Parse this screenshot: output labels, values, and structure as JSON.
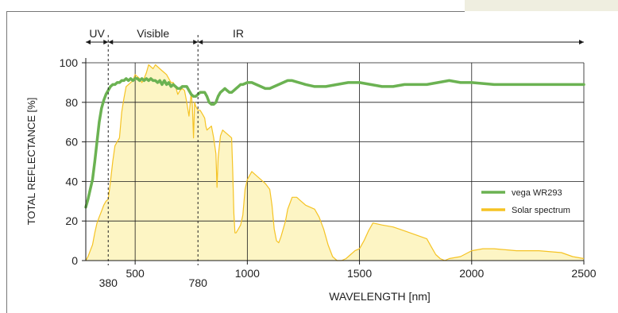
{
  "chart_data": {
    "type": "line",
    "title": "",
    "xlabel": "WAVELENGTH [nm]",
    "ylabel": "TOTAL REFLECTANCE [%]",
    "xlim": [
      280,
      2500
    ],
    "ylim": [
      0,
      100
    ],
    "x_ticks": [
      500,
      1000,
      1500,
      2000,
      2500
    ],
    "x_ticks_low": [
      380,
      780
    ],
    "y_ticks": [
      0,
      20,
      40,
      60,
      80,
      100
    ],
    "grid": true,
    "legend": "right",
    "regions": [
      {
        "label": "UV",
        "from": 280,
        "to": 380
      },
      {
        "label": "Visible",
        "from": 380,
        "to": 780
      },
      {
        "label": "IR",
        "from": 780,
        "to": 2500
      }
    ],
    "series": [
      {
        "name": "vega WR293",
        "color": "#6bb252",
        "points": [
          [
            280,
            27
          ],
          [
            290,
            31
          ],
          [
            300,
            36
          ],
          [
            310,
            41
          ],
          [
            320,
            50
          ],
          [
            330,
            60
          ],
          [
            340,
            70
          ],
          [
            350,
            77
          ],
          [
            360,
            81
          ],
          [
            370,
            84
          ],
          [
            380,
            86
          ],
          [
            390,
            88
          ],
          [
            400,
            89
          ],
          [
            410,
            89
          ],
          [
            420,
            90
          ],
          [
            430,
            90
          ],
          [
            440,
            91
          ],
          [
            450,
            91
          ],
          [
            460,
            92
          ],
          [
            470,
            91
          ],
          [
            480,
            92
          ],
          [
            490,
            91
          ],
          [
            500,
            92
          ],
          [
            510,
            92
          ],
          [
            520,
            91
          ],
          [
            530,
            92
          ],
          [
            540,
            91
          ],
          [
            550,
            92
          ],
          [
            560,
            91
          ],
          [
            570,
            92
          ],
          [
            580,
            91
          ],
          [
            590,
            91
          ],
          [
            600,
            90
          ],
          [
            610,
            91
          ],
          [
            620,
            89
          ],
          [
            630,
            91
          ],
          [
            640,
            89
          ],
          [
            650,
            90
          ],
          [
            660,
            88
          ],
          [
            670,
            89
          ],
          [
            680,
            88
          ],
          [
            690,
            87
          ],
          [
            700,
            87
          ],
          [
            710,
            88
          ],
          [
            720,
            88
          ],
          [
            730,
            88
          ],
          [
            740,
            86
          ],
          [
            750,
            84
          ],
          [
            760,
            83
          ],
          [
            770,
            83
          ],
          [
            780,
            84
          ],
          [
            790,
            85
          ],
          [
            800,
            85
          ],
          [
            810,
            85
          ],
          [
            820,
            83
          ],
          [
            830,
            80
          ],
          [
            840,
            79
          ],
          [
            850,
            79
          ],
          [
            860,
            80
          ],
          [
            870,
            83
          ],
          [
            880,
            85
          ],
          [
            890,
            86
          ],
          [
            900,
            87
          ],
          [
            910,
            86
          ],
          [
            920,
            85
          ],
          [
            930,
            85
          ],
          [
            940,
            86
          ],
          [
            950,
            87
          ],
          [
            960,
            88
          ],
          [
            970,
            89
          ],
          [
            980,
            89
          ],
          [
            1000,
            90
          ],
          [
            1020,
            90
          ],
          [
            1040,
            89
          ],
          [
            1060,
            88
          ],
          [
            1080,
            87
          ],
          [
            1100,
            87
          ],
          [
            1120,
            88
          ],
          [
            1140,
            89
          ],
          [
            1160,
            90
          ],
          [
            1180,
            91
          ],
          [
            1200,
            91
          ],
          [
            1230,
            90
          ],
          [
            1260,
            89
          ],
          [
            1300,
            88
          ],
          [
            1350,
            88
          ],
          [
            1400,
            89
          ],
          [
            1450,
            90
          ],
          [
            1500,
            90
          ],
          [
            1550,
            89
          ],
          [
            1600,
            88
          ],
          [
            1650,
            88
          ],
          [
            1700,
            89
          ],
          [
            1750,
            89
          ],
          [
            1800,
            89
          ],
          [
            1850,
            90
          ],
          [
            1900,
            91
          ],
          [
            1950,
            90
          ],
          [
            2000,
            90
          ],
          [
            2100,
            89
          ],
          [
            2200,
            89
          ],
          [
            2300,
            89
          ],
          [
            2400,
            89
          ],
          [
            2500,
            89
          ]
        ]
      },
      {
        "name": "Solar spectrum",
        "color": "#f5c324",
        "fill": "#fdf5c4",
        "points": [
          [
            280,
            0
          ],
          [
            290,
            2
          ],
          [
            300,
            5
          ],
          [
            310,
            8
          ],
          [
            320,
            14
          ],
          [
            330,
            19
          ],
          [
            340,
            22
          ],
          [
            350,
            25
          ],
          [
            360,
            28
          ],
          [
            370,
            30
          ],
          [
            380,
            31
          ],
          [
            390,
            40
          ],
          [
            400,
            50
          ],
          [
            410,
            58
          ],
          [
            420,
            60
          ],
          [
            430,
            62
          ],
          [
            440,
            75
          ],
          [
            450,
            82
          ],
          [
            460,
            88
          ],
          [
            470,
            89
          ],
          [
            480,
            90
          ],
          [
            490,
            91
          ],
          [
            500,
            94
          ],
          [
            510,
            93
          ],
          [
            520,
            92
          ],
          [
            530,
            90
          ],
          [
            540,
            92
          ],
          [
            550,
            95
          ],
          [
            560,
            99
          ],
          [
            570,
            98
          ],
          [
            580,
            97
          ],
          [
            590,
            99
          ],
          [
            600,
            98
          ],
          [
            610,
            97
          ],
          [
            620,
            96
          ],
          [
            630,
            95
          ],
          [
            640,
            94
          ],
          [
            650,
            92
          ],
          [
            660,
            90
          ],
          [
            670,
            90
          ],
          [
            680,
            88
          ],
          [
            690,
            84
          ],
          [
            700,
            86
          ],
          [
            710,
            87
          ],
          [
            720,
            86
          ],
          [
            730,
            80
          ],
          [
            740,
            73
          ],
          [
            750,
            85
          ],
          [
            755,
            78
          ],
          [
            760,
            62
          ],
          [
            765,
            80
          ],
          [
            770,
            78
          ],
          [
            780,
            76
          ],
          [
            790,
            76
          ],
          [
            800,
            74
          ],
          [
            810,
            72
          ],
          [
            815,
            68
          ],
          [
            820,
            66
          ],
          [
            830,
            67
          ],
          [
            840,
            68
          ],
          [
            850,
            62
          ],
          [
            860,
            54
          ],
          [
            865,
            37
          ],
          [
            870,
            52
          ],
          [
            880,
            63
          ],
          [
            890,
            66
          ],
          [
            900,
            65
          ],
          [
            910,
            64
          ],
          [
            920,
            63
          ],
          [
            930,
            62
          ],
          [
            935,
            45
          ],
          [
            940,
            24
          ],
          [
            945,
            14
          ],
          [
            950,
            14
          ],
          [
            960,
            16
          ],
          [
            970,
            18
          ],
          [
            980,
            23
          ],
          [
            990,
            36
          ],
          [
            1000,
            41
          ],
          [
            1020,
            45
          ],
          [
            1040,
            43
          ],
          [
            1060,
            41
          ],
          [
            1080,
            39
          ],
          [
            1100,
            36
          ],
          [
            1110,
            28
          ],
          [
            1120,
            16
          ],
          [
            1130,
            10
          ],
          [
            1140,
            9
          ],
          [
            1150,
            12
          ],
          [
            1170,
            20
          ],
          [
            1180,
            26
          ],
          [
            1200,
            32
          ],
          [
            1220,
            32
          ],
          [
            1240,
            30
          ],
          [
            1260,
            28
          ],
          [
            1280,
            27
          ],
          [
            1300,
            26
          ],
          [
            1320,
            22
          ],
          [
            1340,
            16
          ],
          [
            1360,
            8
          ],
          [
            1380,
            2
          ],
          [
            1400,
            0
          ],
          [
            1420,
            0
          ],
          [
            1440,
            1
          ],
          [
            1460,
            3
          ],
          [
            1480,
            5
          ],
          [
            1500,
            6
          ],
          [
            1520,
            10
          ],
          [
            1540,
            15
          ],
          [
            1560,
            19
          ],
          [
            1600,
            18
          ],
          [
            1650,
            17
          ],
          [
            1700,
            15
          ],
          [
            1750,
            13
          ],
          [
            1800,
            11
          ],
          [
            1820,
            7
          ],
          [
            1840,
            3
          ],
          [
            1860,
            1
          ],
          [
            1880,
            0
          ],
          [
            1900,
            1
          ],
          [
            1950,
            2
          ],
          [
            2000,
            5
          ],
          [
            2050,
            6
          ],
          [
            2100,
            6
          ],
          [
            2200,
            5
          ],
          [
            2300,
            5
          ],
          [
            2400,
            4
          ],
          [
            2450,
            2
          ],
          [
            2500,
            1
          ]
        ]
      }
    ]
  }
}
